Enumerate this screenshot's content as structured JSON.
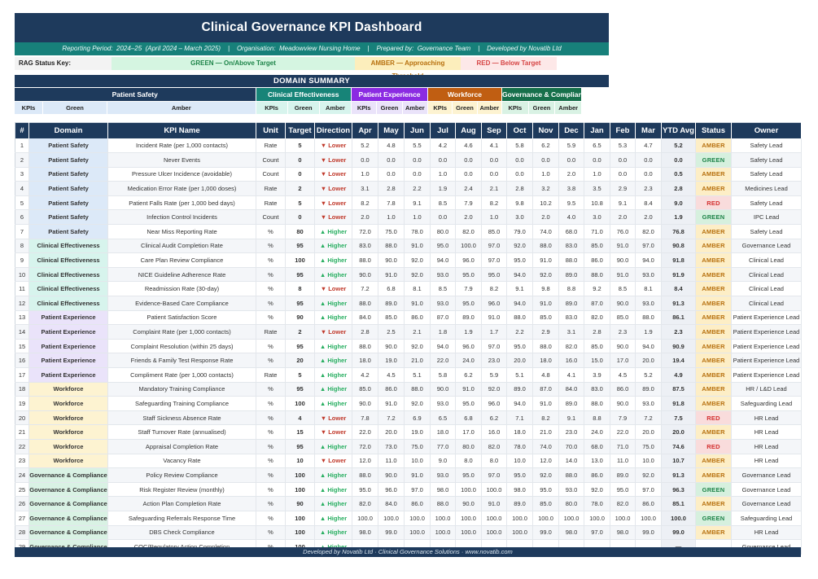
{
  "title": "Clinical Governance KPI Dashboard",
  "subtitle_line": "Reporting Period:  2024–25  (April 2024 – March 2025)    |    Organisation:  Meadowview Nursing Home    |    Prepared by:  Governance Team    |    Developed by Novatib Ltd",
  "rag_key": {
    "label": "RAG Status Key:",
    "green": "GREEN — On/Above Target",
    "amber": "AMBER — Approaching Threshold",
    "red": "RED — Below Target"
  },
  "domain_summary": {
    "title": "DOMAIN SUMMARY",
    "sub_labels": [
      "KPIs",
      "Green",
      "Amber"
    ],
    "groups": [
      {
        "name": "Patient Safety",
        "color": "#1e3a5c",
        "tint": "#dce9f8"
      },
      {
        "name": "Clinical Effectiveness",
        "color": "#178478",
        "tint": "#d7f4ed"
      },
      {
        "name": "Patient Experience",
        "color": "#8b2be2",
        "tint": "#eae3fa"
      },
      {
        "name": "Workforce",
        "color": "#c05e12",
        "tint": "#fdf3d1"
      },
      {
        "name": "Governance & Compliance",
        "color": "#17704b",
        "tint": "#d9f2e4"
      }
    ]
  },
  "colors": {
    "domain_tints": {
      "Patient Safety": "#dce9f8",
      "Clinical Effectiveness": "#d7f4ed",
      "Patient Experience": "#eae3fa",
      "Workforce": "#fdf3d1",
      "Governance & Compliance": "#d9f2e4"
    },
    "direction": {
      "lower": "#c0392b",
      "higher": "#27ae60"
    },
    "status": {
      "AMBER": {
        "bg": "#fdeec6",
        "fg": "#b7700e"
      },
      "GREEN": {
        "bg": "#d6f0de",
        "fg": "#1e8449"
      },
      "RED": {
        "bg": "#f9dcdc",
        "fg": "#d33030"
      }
    }
  },
  "table": {
    "headers": [
      "#",
      "Domain",
      "KPI Name",
      "Unit",
      "Target",
      "Direction",
      "Apr",
      "May",
      "Jun",
      "Jul",
      "Aug",
      "Sep",
      "Oct",
      "Nov",
      "Dec",
      "Jan",
      "Feb",
      "Mar",
      "YTD Avg",
      "Status",
      "Owner"
    ],
    "rows": [
      {
        "num": "1",
        "domain": "Patient Safety",
        "kpi": "Incident Rate (per 1,000 contacts)",
        "unit": "Rate",
        "target": "5",
        "direction": "▼ Lower",
        "direction_type": "lower",
        "months": [
          "5.2",
          "4.8",
          "5.5",
          "4.2",
          "4.6",
          "4.1",
          "5.8",
          "6.2",
          "5.9",
          "6.5",
          "5.3",
          "4.7"
        ],
        "ytd": "5.2",
        "status": "AMBER",
        "owner": "Safety Lead"
      },
      {
        "num": "2",
        "domain": "Patient Safety",
        "kpi": "Never Events",
        "unit": "Count",
        "target": "0",
        "direction": "▼ Lower",
        "direction_type": "lower",
        "months": [
          "0.0",
          "0.0",
          "0.0",
          "0.0",
          "0.0",
          "0.0",
          "0.0",
          "0.0",
          "0.0",
          "0.0",
          "0.0",
          "0.0"
        ],
        "ytd": "0.0",
        "status": "GREEN",
        "owner": "Safety Lead"
      },
      {
        "num": "3",
        "domain": "Patient Safety",
        "kpi": "Pressure Ulcer Incidence (avoidable)",
        "unit": "Count",
        "target": "0",
        "direction": "▼ Lower",
        "direction_type": "lower",
        "months": [
          "1.0",
          "0.0",
          "0.0",
          "1.0",
          "0.0",
          "0.0",
          "0.0",
          "1.0",
          "2.0",
          "1.0",
          "0.0",
          "0.0"
        ],
        "ytd": "0.5",
        "status": "AMBER",
        "owner": "Safety Lead"
      },
      {
        "num": "4",
        "domain": "Patient Safety",
        "kpi": "Medication Error Rate (per 1,000 doses)",
        "unit": "Rate",
        "target": "2",
        "direction": "▼ Lower",
        "direction_type": "lower",
        "months": [
          "3.1",
          "2.8",
          "2.2",
          "1.9",
          "2.4",
          "2.1",
          "2.8",
          "3.2",
          "3.8",
          "3.5",
          "2.9",
          "2.3"
        ],
        "ytd": "2.8",
        "status": "AMBER",
        "owner": "Medicines Lead"
      },
      {
        "num": "5",
        "domain": "Patient Safety",
        "kpi": "Patient Falls Rate (per 1,000 bed days)",
        "unit": "Rate",
        "target": "5",
        "direction": "▼ Lower",
        "direction_type": "lower",
        "months": [
          "8.2",
          "7.8",
          "9.1",
          "8.5",
          "7.9",
          "8.2",
          "9.8",
          "10.2",
          "9.5",
          "10.8",
          "9.1",
          "8.4"
        ],
        "ytd": "9.0",
        "status": "RED",
        "owner": "Safety Lead"
      },
      {
        "num": "6",
        "domain": "Patient Safety",
        "kpi": "Infection Control Incidents",
        "unit": "Count",
        "target": "0",
        "direction": "▼ Lower",
        "direction_type": "lower",
        "months": [
          "2.0",
          "1.0",
          "1.0",
          "0.0",
          "2.0",
          "1.0",
          "3.0",
          "2.0",
          "4.0",
          "3.0",
          "2.0",
          "2.0"
        ],
        "ytd": "1.9",
        "status": "GREEN",
        "owner": "IPC Lead"
      },
      {
        "num": "7",
        "domain": "Patient Safety",
        "kpi": "Near Miss Reporting Rate",
        "unit": "%",
        "target": "80",
        "direction": "▲ Higher",
        "direction_type": "higher",
        "months": [
          "72.0",
          "75.0",
          "78.0",
          "80.0",
          "82.0",
          "85.0",
          "79.0",
          "74.0",
          "68.0",
          "71.0",
          "76.0",
          "82.0"
        ],
        "ytd": "76.8",
        "status": "AMBER",
        "owner": "Safety Lead"
      },
      {
        "num": "8",
        "domain": "Clinical Effectiveness",
        "kpi": "Clinical Audit Completion Rate",
        "unit": "%",
        "target": "95",
        "direction": "▲ Higher",
        "direction_type": "higher",
        "months": [
          "83.0",
          "88.0",
          "91.0",
          "95.0",
          "100.0",
          "97.0",
          "92.0",
          "88.0",
          "83.0",
          "85.0",
          "91.0",
          "97.0"
        ],
        "ytd": "90.8",
        "status": "AMBER",
        "owner": "Governance Lead"
      },
      {
        "num": "9",
        "domain": "Clinical Effectiveness",
        "kpi": "Care Plan Review Compliance",
        "unit": "%",
        "target": "100",
        "direction": "▲ Higher",
        "direction_type": "higher",
        "months": [
          "88.0",
          "90.0",
          "92.0",
          "94.0",
          "96.0",
          "97.0",
          "95.0",
          "91.0",
          "88.0",
          "86.0",
          "90.0",
          "94.0"
        ],
        "ytd": "91.8",
        "status": "AMBER",
        "owner": "Clinical Lead"
      },
      {
        "num": "10",
        "domain": "Clinical Effectiveness",
        "kpi": "NICE Guideline Adherence Rate",
        "unit": "%",
        "target": "95",
        "direction": "▲ Higher",
        "direction_type": "higher",
        "months": [
          "90.0",
          "91.0",
          "92.0",
          "93.0",
          "95.0",
          "95.0",
          "94.0",
          "92.0",
          "89.0",
          "88.0",
          "91.0",
          "93.0"
        ],
        "ytd": "91.9",
        "status": "AMBER",
        "owner": "Clinical Lead"
      },
      {
        "num": "11",
        "domain": "Clinical Effectiveness",
        "kpi": "Readmission Rate (30-day)",
        "unit": "%",
        "target": "8",
        "direction": "▼ Lower",
        "direction_type": "lower",
        "months": [
          "7.2",
          "6.8",
          "8.1",
          "8.5",
          "7.9",
          "8.2",
          "9.1",
          "9.8",
          "8.8",
          "9.2",
          "8.5",
          "8.1"
        ],
        "ytd": "8.4",
        "status": "AMBER",
        "owner": "Clinical Lead"
      },
      {
        "num": "12",
        "domain": "Clinical Effectiveness",
        "kpi": "Evidence-Based Care Compliance",
        "unit": "%",
        "target": "95",
        "direction": "▲ Higher",
        "direction_type": "higher",
        "months": [
          "88.0",
          "89.0",
          "91.0",
          "93.0",
          "95.0",
          "96.0",
          "94.0",
          "91.0",
          "89.0",
          "87.0",
          "90.0",
          "93.0"
        ],
        "ytd": "91.3",
        "status": "AMBER",
        "owner": "Clinical Lead"
      },
      {
        "num": "13",
        "domain": "Patient Experience",
        "kpi": "Patient Satisfaction Score",
        "unit": "%",
        "target": "90",
        "direction": "▲ Higher",
        "direction_type": "higher",
        "months": [
          "84.0",
          "85.0",
          "86.0",
          "87.0",
          "89.0",
          "91.0",
          "88.0",
          "85.0",
          "83.0",
          "82.0",
          "85.0",
          "88.0"
        ],
        "ytd": "86.1",
        "status": "AMBER",
        "owner": "Patient Experience Lead"
      },
      {
        "num": "14",
        "domain": "Patient Experience",
        "kpi": "Complaint Rate (per 1,000 contacts)",
        "unit": "Rate",
        "target": "2",
        "direction": "▼ Lower",
        "direction_type": "lower",
        "months": [
          "2.8",
          "2.5",
          "2.1",
          "1.8",
          "1.9",
          "1.7",
          "2.2",
          "2.9",
          "3.1",
          "2.8",
          "2.3",
          "1.9"
        ],
        "ytd": "2.3",
        "status": "AMBER",
        "owner": "Patient Experience Lead"
      },
      {
        "num": "15",
        "domain": "Patient Experience",
        "kpi": "Complaint Resolution (within 25 days)",
        "unit": "%",
        "target": "95",
        "direction": "▲ Higher",
        "direction_type": "higher",
        "months": [
          "88.0",
          "90.0",
          "92.0",
          "94.0",
          "96.0",
          "97.0",
          "95.0",
          "88.0",
          "82.0",
          "85.0",
          "90.0",
          "94.0"
        ],
        "ytd": "90.9",
        "status": "AMBER",
        "owner": "Patient Experience Lead"
      },
      {
        "num": "16",
        "domain": "Patient Experience",
        "kpi": "Friends & Family Test Response Rate",
        "unit": "%",
        "target": "20",
        "direction": "▲ Higher",
        "direction_type": "higher",
        "months": [
          "18.0",
          "19.0",
          "21.0",
          "22.0",
          "24.0",
          "23.0",
          "20.0",
          "18.0",
          "16.0",
          "15.0",
          "17.0",
          "20.0"
        ],
        "ytd": "19.4",
        "status": "AMBER",
        "owner": "Patient Experience Lead"
      },
      {
        "num": "17",
        "domain": "Patient Experience",
        "kpi": "Compliment Rate (per 1,000 contacts)",
        "unit": "Rate",
        "target": "5",
        "direction": "▲ Higher",
        "direction_type": "higher",
        "months": [
          "4.2",
          "4.5",
          "5.1",
          "5.8",
          "6.2",
          "5.9",
          "5.1",
          "4.8",
          "4.1",
          "3.9",
          "4.5",
          "5.2"
        ],
        "ytd": "4.9",
        "status": "AMBER",
        "owner": "Patient Experience Lead"
      },
      {
        "num": "18",
        "domain": "Workforce",
        "kpi": "Mandatory Training Compliance",
        "unit": "%",
        "target": "95",
        "direction": "▲ Higher",
        "direction_type": "higher",
        "months": [
          "85.0",
          "86.0",
          "88.0",
          "90.0",
          "91.0",
          "92.0",
          "89.0",
          "87.0",
          "84.0",
          "83.0",
          "86.0",
          "89.0"
        ],
        "ytd": "87.5",
        "status": "AMBER",
        "owner": "HR / L&D Lead"
      },
      {
        "num": "19",
        "domain": "Workforce",
        "kpi": "Safeguarding Training Compliance",
        "unit": "%",
        "target": "100",
        "direction": "▲ Higher",
        "direction_type": "higher",
        "months": [
          "90.0",
          "91.0",
          "92.0",
          "93.0",
          "95.0",
          "96.0",
          "94.0",
          "91.0",
          "89.0",
          "88.0",
          "90.0",
          "93.0"
        ],
        "ytd": "91.8",
        "status": "AMBER",
        "owner": "Safeguarding Lead"
      },
      {
        "num": "20",
        "domain": "Workforce",
        "kpi": "Staff Sickness Absence Rate",
        "unit": "%",
        "target": "4",
        "direction": "▼ Lower",
        "direction_type": "lower",
        "months": [
          "7.8",
          "7.2",
          "6.9",
          "6.5",
          "6.8",
          "6.2",
          "7.1",
          "8.2",
          "9.1",
          "8.8",
          "7.9",
          "7.2"
        ],
        "ytd": "7.5",
        "status": "RED",
        "owner": "HR Lead"
      },
      {
        "num": "21",
        "domain": "Workforce",
        "kpi": "Staff Turnover Rate (annualised)",
        "unit": "%",
        "target": "15",
        "direction": "▼ Lower",
        "direction_type": "lower",
        "months": [
          "22.0",
          "20.0",
          "19.0",
          "18.0",
          "17.0",
          "16.0",
          "18.0",
          "21.0",
          "23.0",
          "24.0",
          "22.0",
          "20.0"
        ],
        "ytd": "20.0",
        "status": "AMBER",
        "owner": "HR Lead"
      },
      {
        "num": "22",
        "domain": "Workforce",
        "kpi": "Appraisal Completion Rate",
        "unit": "%",
        "target": "95",
        "direction": "▲ Higher",
        "direction_type": "higher",
        "months": [
          "72.0",
          "73.0",
          "75.0",
          "77.0",
          "80.0",
          "82.0",
          "78.0",
          "74.0",
          "70.0",
          "68.0",
          "71.0",
          "75.0"
        ],
        "ytd": "74.6",
        "status": "RED",
        "owner": "HR Lead"
      },
      {
        "num": "23",
        "domain": "Workforce",
        "kpi": "Vacancy Rate",
        "unit": "%",
        "target": "10",
        "direction": "▼ Lower",
        "direction_type": "lower",
        "months": [
          "12.0",
          "11.0",
          "10.0",
          "9.0",
          "8.0",
          "8.0",
          "10.0",
          "12.0",
          "14.0",
          "13.0",
          "11.0",
          "10.0"
        ],
        "ytd": "10.7",
        "status": "AMBER",
        "owner": "HR Lead"
      },
      {
        "num": "24",
        "domain": "Governance & Compliance",
        "kpi": "Policy Review Compliance",
        "unit": "%",
        "target": "100",
        "direction": "▲ Higher",
        "direction_type": "higher",
        "months": [
          "88.0",
          "90.0",
          "91.0",
          "93.0",
          "95.0",
          "97.0",
          "95.0",
          "92.0",
          "88.0",
          "86.0",
          "89.0",
          "92.0"
        ],
        "ytd": "91.3",
        "status": "AMBER",
        "owner": "Governance Lead"
      },
      {
        "num": "25",
        "domain": "Governance & Compliance",
        "kpi": "Risk Register Review (monthly)",
        "unit": "%",
        "target": "100",
        "direction": "▲ Higher",
        "direction_type": "higher",
        "months": [
          "95.0",
          "96.0",
          "97.0",
          "98.0",
          "100.0",
          "100.0",
          "98.0",
          "95.0",
          "93.0",
          "92.0",
          "95.0",
          "97.0"
        ],
        "ytd": "96.3",
        "status": "GREEN",
        "owner": "Governance Lead"
      },
      {
        "num": "26",
        "domain": "Governance & Compliance",
        "kpi": "Action Plan Completion Rate",
        "unit": "%",
        "target": "90",
        "direction": "▲ Higher",
        "direction_type": "higher",
        "months": [
          "82.0",
          "84.0",
          "86.0",
          "88.0",
          "90.0",
          "91.0",
          "89.0",
          "85.0",
          "80.0",
          "78.0",
          "82.0",
          "86.0"
        ],
        "ytd": "85.1",
        "status": "AMBER",
        "owner": "Governance Lead"
      },
      {
        "num": "27",
        "domain": "Governance & Compliance",
        "kpi": "Safeguarding Referrals Response Time",
        "unit": "%",
        "target": "100",
        "direction": "▲ Higher",
        "direction_type": "higher",
        "months": [
          "100.0",
          "100.0",
          "100.0",
          "100.0",
          "100.0",
          "100.0",
          "100.0",
          "100.0",
          "100.0",
          "100.0",
          "100.0",
          "100.0"
        ],
        "ytd": "100.0",
        "status": "GREEN",
        "owner": "Safeguarding Lead"
      },
      {
        "num": "28",
        "domain": "Governance & Compliance",
        "kpi": "DBS Check Compliance",
        "unit": "%",
        "target": "100",
        "direction": "▲ Higher",
        "direction_type": "higher",
        "months": [
          "98.0",
          "99.0",
          "100.0",
          "100.0",
          "100.0",
          "100.0",
          "100.0",
          "99.0",
          "98.0",
          "97.0",
          "98.0",
          "99.0"
        ],
        "ytd": "99.0",
        "status": "AMBER",
        "owner": "HR Lead"
      },
      {
        "num": "29",
        "domain": "Governance & Compliance",
        "kpi": "CQC/Regulatory Action Completion",
        "unit": "%",
        "target": "100",
        "direction": "▲ Higher",
        "direction_type": "higher",
        "months": [
          "",
          "",
          "",
          "",
          "",
          "",
          "",
          "",
          "",
          "",
          "",
          ""
        ],
        "ytd": "—",
        "status": "",
        "owner": "Governance Lead"
      }
    ]
  },
  "footer": "Developed by Novatib Ltd  ·  Clinical Governance Solutions  ·  www.novatib.com"
}
